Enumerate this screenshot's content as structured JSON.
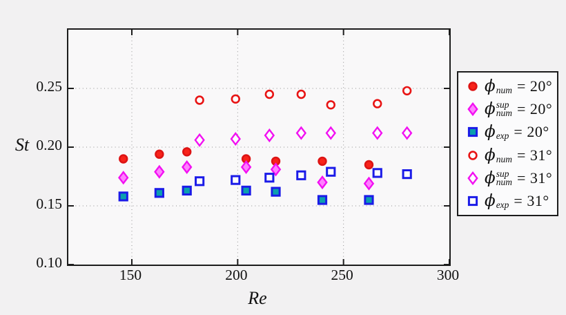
{
  "figure": {
    "background": "#f2f1f2",
    "plot_background": "#f9f8f9",
    "axis_color": "#1c1c1c",
    "grid_color": "#8f8f8f"
  },
  "chart_data": {
    "type": "scatter",
    "title": "",
    "xlabel": "Re",
    "ylabel": "St",
    "xlim": [
      120,
      300
    ],
    "ylim": [
      0.1,
      0.3
    ],
    "xticks": [
      {
        "v": 150,
        "label": "150"
      },
      {
        "v": 200,
        "label": "200"
      },
      {
        "v": 250,
        "label": "250"
      },
      {
        "v": 300,
        "label": "300"
      }
    ],
    "yticks": [
      {
        "v": 0.1,
        "label": "0.10"
      },
      {
        "v": 0.15,
        "label": "0.15"
      },
      {
        "v": 0.2,
        "label": "0.20"
      },
      {
        "v": 0.25,
        "label": "0.25"
      }
    ],
    "grid": "dotted",
    "legend_position": "outside-right",
    "series": [
      {
        "name": "phi_num = 20°",
        "marker": "circle",
        "style": "filled",
        "color": "#dd1414",
        "fill_color": "#f8231a",
        "legend": {
          "phi": "ϕ",
          "sub": "num",
          "sup": "",
          "eq": "= 20°"
        },
        "points": [
          [
            146,
            0.19
          ],
          [
            163,
            0.194
          ],
          [
            176,
            0.196
          ],
          [
            204,
            0.19
          ],
          [
            218,
            0.188
          ],
          [
            240,
            0.188
          ],
          [
            262,
            0.185
          ]
        ]
      },
      {
        "name": "phi_num_sup = 20°",
        "marker": "diamond",
        "style": "filled",
        "color": "#f210f2",
        "fill_color": "#ff80ff",
        "legend": {
          "phi": "ϕ",
          "sub": "num",
          "sup": "sup",
          "eq": "= 20°"
        },
        "points": [
          [
            146,
            0.174
          ],
          [
            163,
            0.179
          ],
          [
            176,
            0.183
          ],
          [
            204,
            0.183
          ],
          [
            218,
            0.181
          ],
          [
            240,
            0.17
          ],
          [
            262,
            0.169
          ]
        ]
      },
      {
        "name": "phi_exp = 20°",
        "marker": "square",
        "style": "filled",
        "color": "#1b1be8",
        "fill_color": "#0b9fae",
        "legend": {
          "phi": "ϕ",
          "sub": "exp",
          "sup": "",
          "eq": "= 20°"
        },
        "points": [
          [
            146,
            0.158
          ],
          [
            163,
            0.161
          ],
          [
            176,
            0.163
          ],
          [
            204,
            0.163
          ],
          [
            218,
            0.162
          ],
          [
            240,
            0.155
          ],
          [
            262,
            0.155
          ]
        ]
      },
      {
        "name": "phi_num = 31°",
        "marker": "circle",
        "style": "open",
        "color": "#e81414",
        "fill_color": "#fdfdfd",
        "legend": {
          "phi": "ϕ",
          "sub": "num",
          "sup": "",
          "eq": "= 31°"
        },
        "points": [
          [
            182,
            0.24
          ],
          [
            199,
            0.241
          ],
          [
            215,
            0.245
          ],
          [
            230,
            0.245
          ],
          [
            244,
            0.236
          ],
          [
            266,
            0.237
          ],
          [
            280,
            0.248
          ]
        ]
      },
      {
        "name": "phi_num_sup = 31°",
        "marker": "diamond",
        "style": "open",
        "color": "#f210f2",
        "fill_color": "#fdfdfd",
        "legend": {
          "phi": "ϕ",
          "sub": "num",
          "sup": "sup",
          "eq": "= 31°"
        },
        "points": [
          [
            182,
            0.206
          ],
          [
            199,
            0.207
          ],
          [
            215,
            0.21
          ],
          [
            230,
            0.212
          ],
          [
            244,
            0.212
          ],
          [
            266,
            0.212
          ],
          [
            280,
            0.212
          ]
        ]
      },
      {
        "name": "phi_exp = 31°",
        "marker": "square",
        "style": "open",
        "color": "#1b1be8",
        "fill_color": "#fdfdfd",
        "legend": {
          "phi": "ϕ",
          "sub": "exp",
          "sup": "",
          "eq": "= 31°"
        },
        "points": [
          [
            182,
            0.171
          ],
          [
            199,
            0.172
          ],
          [
            215,
            0.174
          ],
          [
            230,
            0.176
          ],
          [
            244,
            0.179
          ],
          [
            266,
            0.178
          ],
          [
            280,
            0.177
          ]
        ]
      }
    ]
  }
}
